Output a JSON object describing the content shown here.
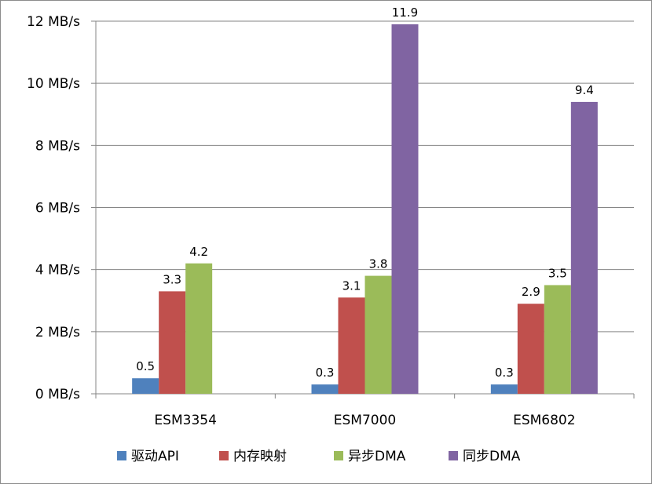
{
  "chart_data": {
    "type": "bar",
    "title": "",
    "xlabel": "",
    "ylabel": "",
    "categories": [
      "ESM3354",
      "ESM7000",
      "ESM6802"
    ],
    "series": [
      {
        "name": "驱动API",
        "color": "#4f81bd",
        "values": [
          0.5,
          0.3,
          0.3
        ]
      },
      {
        "name": "内存映射",
        "color": "#c0504d",
        "values": [
          3.3,
          3.1,
          2.9
        ]
      },
      {
        "name": "异步DMA",
        "color": "#9bbb59",
        "values": [
          4.2,
          3.8,
          3.5
        ]
      },
      {
        "name": "同步DMA",
        "color": "#8064a2",
        "values": [
          null,
          11.9,
          9.4
        ]
      }
    ],
    "ylim": [
      0,
      12
    ],
    "y_ticks": [
      0,
      2,
      4,
      6,
      8,
      10,
      12
    ],
    "y_tick_labels": [
      "0 MB/s",
      "2 MB/s",
      "4 MB/s",
      "6 MB/s",
      "8 MB/s",
      "10 MB/s",
      "12 MB/s"
    ],
    "grid": true,
    "legend_position": "bottom"
  }
}
